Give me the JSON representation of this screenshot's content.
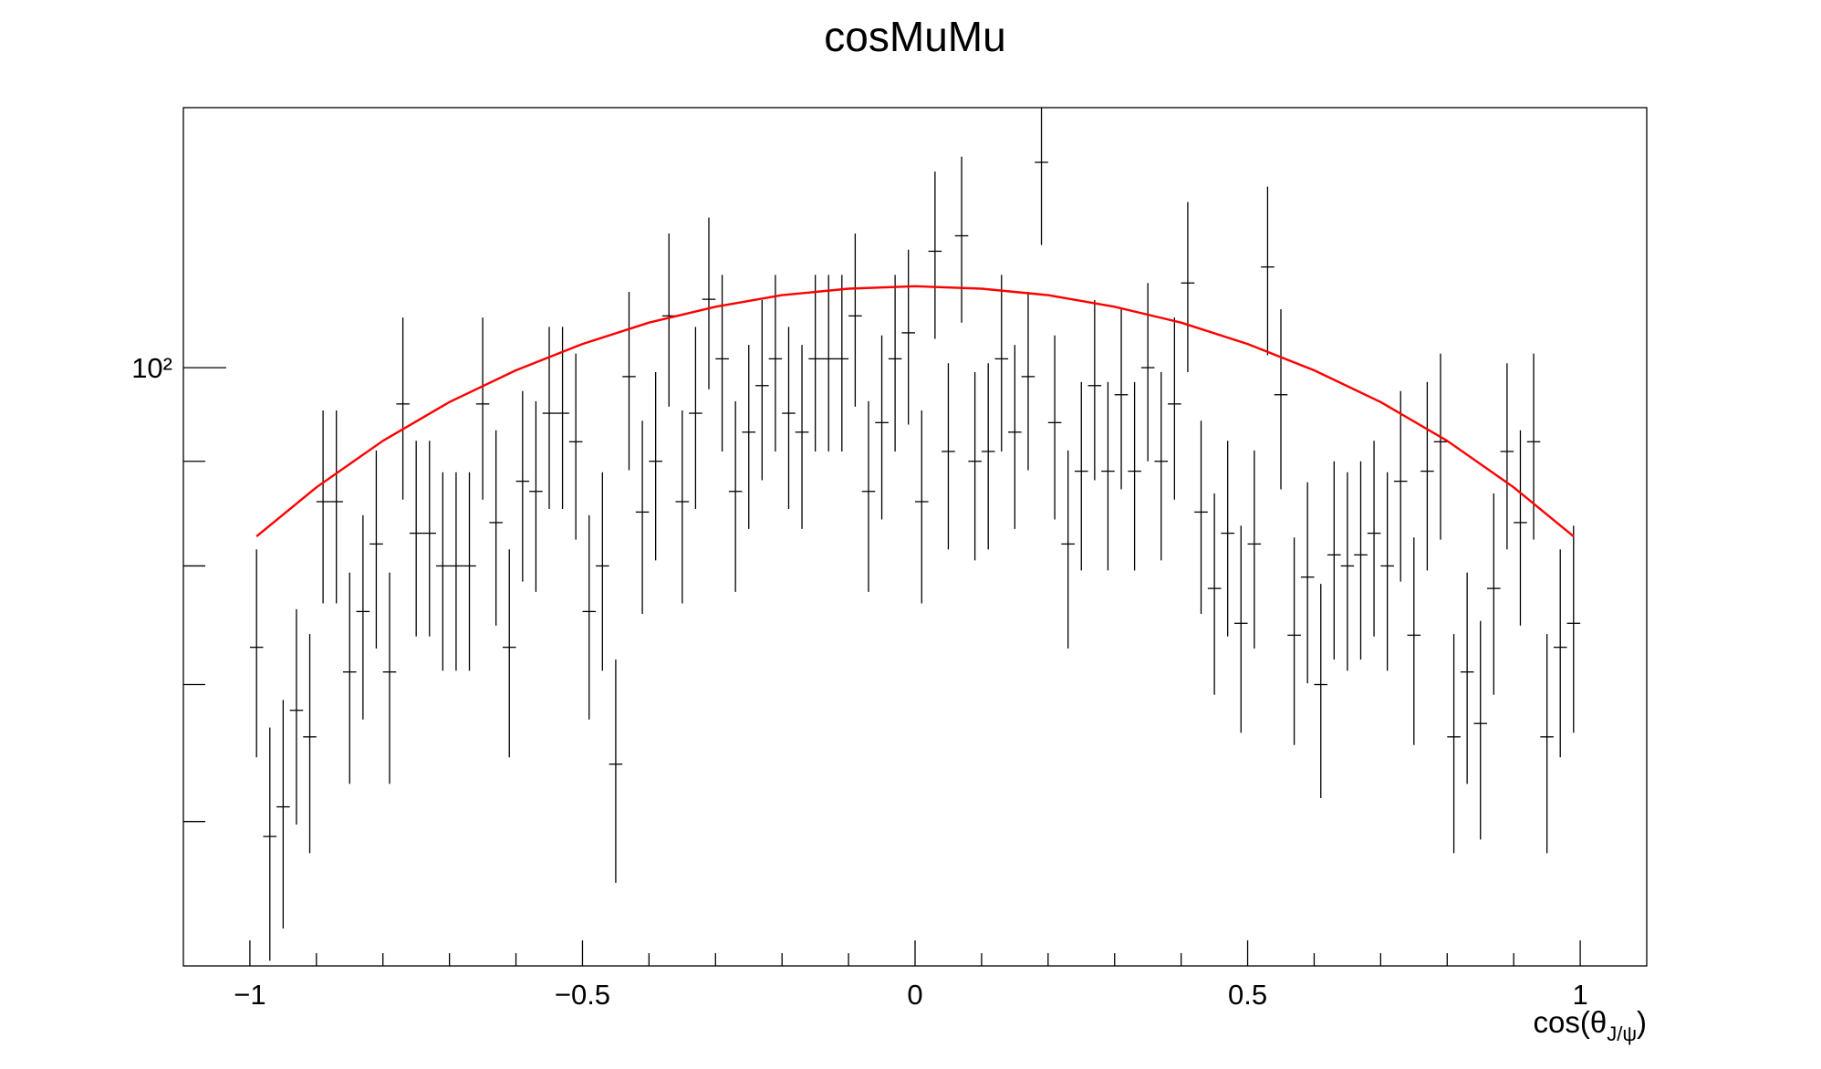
{
  "chart_data": {
    "type": "histogram",
    "title": "cosMuMu",
    "xlabel_parts": [
      "cos(θ",
      "J/ψ",
      ")"
    ],
    "xlim": [
      -1.1,
      1.1
    ],
    "xticks": [
      -1,
      -0.5,
      0,
      0.5,
      1
    ],
    "xtick_labels": [
      "−1",
      "−0.5",
      "0",
      "0.5",
      "1"
    ],
    "xminorticks": [
      -0.9,
      -0.8,
      -0.7,
      -0.6,
      -0.4,
      -0.3,
      -0.2,
      -0.1,
      0.1,
      0.2,
      0.3,
      0.4,
      0.6,
      0.7,
      0.8,
      0.9
    ],
    "ylim": [
      51,
      134
    ],
    "log_y": true,
    "yticks": [
      {
        "value": 100,
        "label": "10²"
      }
    ],
    "yminorticks": [
      60,
      70,
      80,
      90
    ],
    "color": "#000000",
    "bins": [
      -1,
      -0.98,
      -0.96,
      -0.94,
      -0.92,
      -0.9,
      -0.88,
      -0.86,
      -0.84,
      -0.82,
      -0.8,
      -0.78,
      -0.76,
      -0.74,
      -0.72,
      -0.7,
      -0.68,
      -0.66,
      -0.64,
      -0.62,
      -0.6,
      -0.58,
      -0.56,
      -0.54,
      -0.52,
      -0.5,
      -0.48,
      -0.46,
      -0.44,
      -0.42,
      -0.4,
      -0.38,
      -0.36,
      -0.34,
      -0.32,
      -0.3,
      -0.28,
      -0.26,
      -0.24,
      -0.22,
      -0.2,
      -0.18,
      -0.16,
      -0.14,
      -0.12,
      -0.1,
      -0.08,
      -0.06,
      -0.04,
      -0.02,
      0,
      0.02,
      0.04,
      0.06,
      0.08,
      0.1,
      0.12,
      0.14,
      0.16,
      0.18,
      0.2,
      0.22,
      0.24,
      0.26,
      0.28,
      0.3,
      0.32,
      0.34,
      0.36,
      0.38,
      0.4,
      0.42,
      0.44,
      0.46,
      0.48,
      0.5,
      0.52,
      0.54,
      0.56,
      0.58,
      0.6,
      0.62,
      0.64,
      0.66,
      0.68,
      0.7,
      0.72,
      0.74,
      0.76,
      0.78,
      0.8,
      0.82,
      0.84,
      0.86,
      0.88,
      0.9,
      0.92,
      0.94,
      0.96,
      0.98,
      1
    ],
    "values": [
      73,
      59,
      61,
      68,
      66,
      86,
      86,
      71,
      76,
      82,
      71,
      96,
      83,
      83,
      80,
      80,
      80,
      96,
      84,
      73,
      88,
      87,
      95,
      95,
      92,
      76,
      80,
      64,
      99,
      85,
      90,
      106,
      86,
      95,
      108,
      101,
      87,
      93,
      98,
      101,
      95,
      93,
      101,
      101,
      101,
      106,
      87,
      94,
      101,
      104,
      86,
      114,
      91,
      116,
      90,
      91,
      101,
      93,
      99,
      126,
      94,
      82,
      89,
      98,
      89,
      97,
      89,
      100,
      90,
      96,
      110,
      85,
      78,
      83,
      75,
      82,
      112,
      97,
      74,
      79,
      70,
      81,
      80,
      81,
      83,
      80,
      88,
      74,
      89,
      92,
      66,
      71,
      67,
      78,
      91,
      84,
      92,
      66,
      73,
      75
    ],
    "errors": [
      8.5,
      7.7,
      7.8,
      8.2,
      8.1,
      9.3,
      9.3,
      8.4,
      8.7,
      9.1,
      8.4,
      9.8,
      9.1,
      9.1,
      8.9,
      8.9,
      8.9,
      9.8,
      9.2,
      8.5,
      9.4,
      9.3,
      9.7,
      9.7,
      9.6,
      8.7,
      8.9,
      8.0,
      9.9,
      9.2,
      9.5,
      10.3,
      9.3,
      9.7,
      10.4,
      10.0,
      9.3,
      9.6,
      9.9,
      10.0,
      9.7,
      9.6,
      10.0,
      10.0,
      10.0,
      10.3,
      9.3,
      9.7,
      10.0,
      10.2,
      9.3,
      10.7,
      9.5,
      10.8,
      9.5,
      9.5,
      10.0,
      9.6,
      9.9,
      11.2,
      9.7,
      9.1,
      9.4,
      9.9,
      9.4,
      9.8,
      9.4,
      10,
      9.5,
      9.8,
      10.5,
      9.2,
      8.8,
      9.1,
      8.7,
      9.1,
      10.6,
      9.8,
      8.6,
      8.9,
      8.4,
      9.0,
      8.9,
      9.0,
      9.1,
      8.9,
      9.4,
      8.6,
      9.4,
      9.6,
      8.1,
      8.4,
      8.2,
      8.8,
      9.5,
      9.2,
      9.6,
      8.1,
      8.5,
      8.7
    ],
    "fit": {
      "color": "#ff0000",
      "x": [
        -0.99,
        -0.9,
        -0.8,
        -0.7,
        -0.6,
        -0.5,
        -0.4,
        -0.3,
        -0.2,
        -0.1,
        0,
        0.1,
        0.2,
        0.3,
        0.4,
        0.5,
        0.6,
        0.7,
        0.8,
        0.9,
        0.99
      ],
      "y": [
        82.7,
        87.4,
        92.1,
        96.2,
        99.7,
        102.7,
        105.2,
        107.1,
        108.5,
        109.3,
        109.6,
        109.3,
        108.5,
        107.1,
        105.2,
        102.7,
        99.7,
        96.2,
        92.1,
        87.4,
        82.7
      ]
    }
  }
}
